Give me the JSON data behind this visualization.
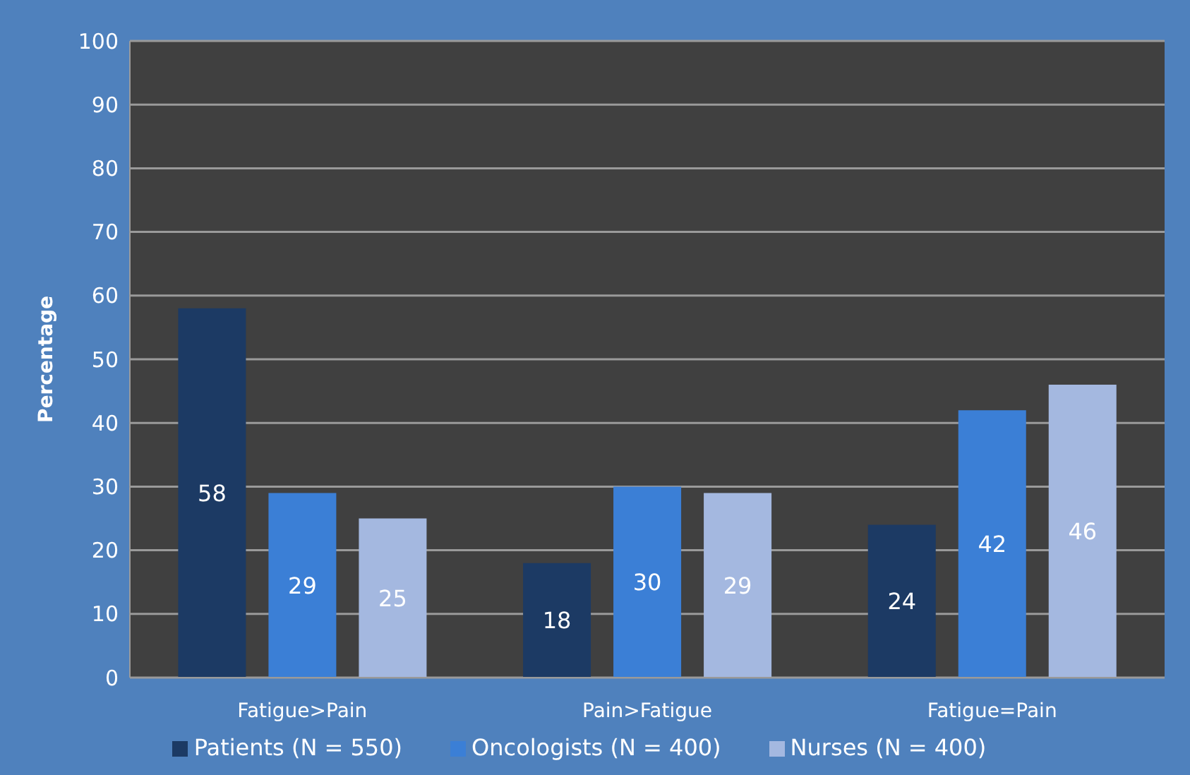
{
  "chart_data": {
    "type": "bar",
    "ylabel": "Percentage",
    "categories": [
      "Fatigue>Pain",
      "Pain>Fatigue",
      "Fatigue=Pain"
    ],
    "series": [
      {
        "name": "Patients (N = 550)",
        "color": "#1c3a64",
        "values": [
          58,
          18,
          24
        ]
      },
      {
        "name": "Oncologists (N = 400)",
        "color": "#3b7fd6",
        "values": [
          29,
          30,
          42
        ]
      },
      {
        "name": "Nurses (N = 400)",
        "color": "#a4b8e0",
        "values": [
          25,
          29,
          46
        ]
      }
    ],
    "ylim": [
      0,
      100
    ],
    "yticks": [
      0,
      10,
      20,
      30,
      40,
      50,
      60,
      70,
      80,
      90,
      100
    ],
    "grid": "y",
    "legend": "bottom",
    "data_labels": true
  }
}
